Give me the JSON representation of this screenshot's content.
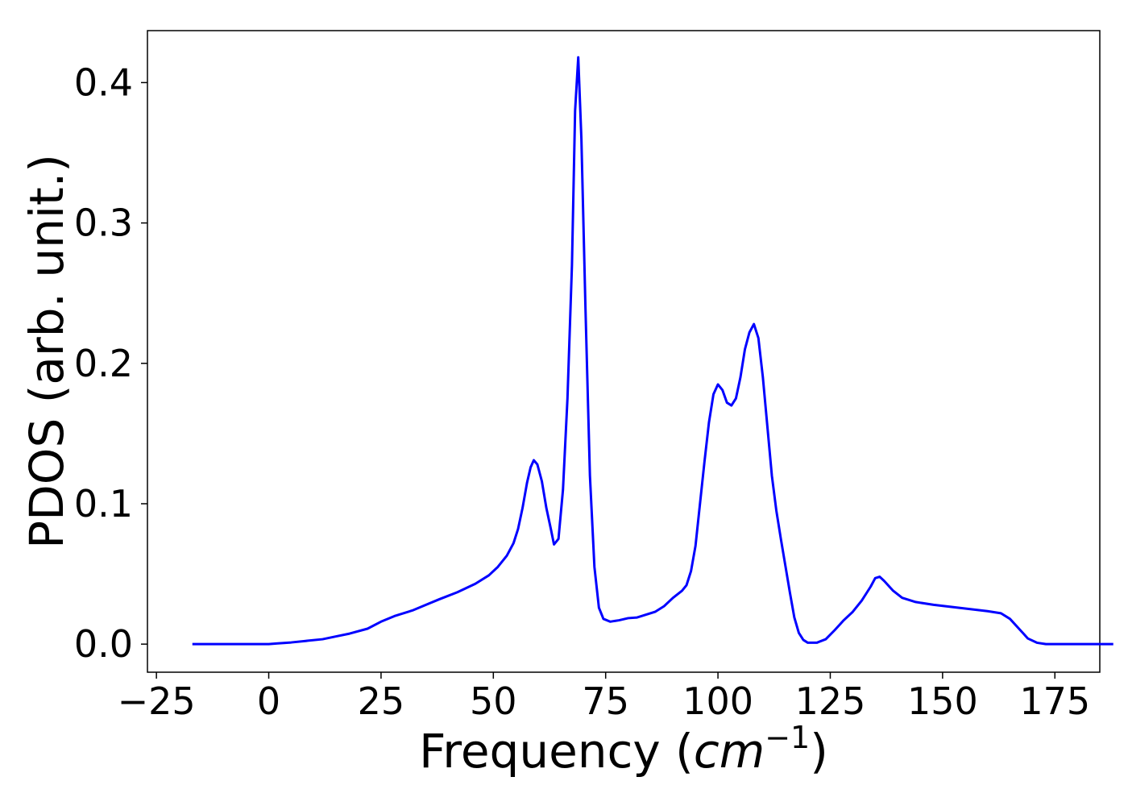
{
  "chart_data": {
    "type": "line",
    "title": "",
    "xlabel_prefix": "Frequency (",
    "xlabel_var": "cm",
    "xlabel_exp": "−1",
    "xlabel_suffix": ")",
    "ylabel": "PDOS (arb. unit.)",
    "xlim": [
      -27,
      185
    ],
    "ylim": [
      -0.02,
      0.437
    ],
    "x_ticks": [
      -25,
      0,
      25,
      50,
      75,
      100,
      125,
      150,
      175
    ],
    "x_tick_labels": [
      "−25",
      "0",
      "25",
      "50",
      "75",
      "100",
      "125",
      "150",
      "175"
    ],
    "y_ticks": [
      0.0,
      0.1,
      0.2,
      0.3,
      0.4
    ],
    "y_tick_labels": [
      "0.0",
      "0.1",
      "0.2",
      "0.3",
      "0.4"
    ],
    "grid": false,
    "series": [
      {
        "color": "#0000ff",
        "points": [
          [
            -17,
            0.0
          ],
          [
            0,
            0.0
          ],
          [
            2,
            0.0005
          ],
          [
            5,
            0.0012
          ],
          [
            8,
            0.0022
          ],
          [
            12,
            0.0035
          ],
          [
            15,
            0.0055
          ],
          [
            18,
            0.0075
          ],
          [
            22,
            0.011
          ],
          [
            25,
            0.016
          ],
          [
            28,
            0.02
          ],
          [
            32,
            0.024
          ],
          [
            35,
            0.028
          ],
          [
            38,
            0.032
          ],
          [
            42,
            0.037
          ],
          [
            46,
            0.043
          ],
          [
            49,
            0.049
          ],
          [
            51,
            0.055
          ],
          [
            53,
            0.063
          ],
          [
            54.5,
            0.072
          ],
          [
            55.5,
            0.082
          ],
          [
            56.5,
            0.097
          ],
          [
            57.5,
            0.115
          ],
          [
            58.3,
            0.126
          ],
          [
            59,
            0.131
          ],
          [
            59.8,
            0.128
          ],
          [
            60.8,
            0.116
          ],
          [
            61.8,
            0.097
          ],
          [
            62.8,
            0.082
          ],
          [
            63.5,
            0.071
          ],
          [
            64.5,
            0.075
          ],
          [
            65.5,
            0.11
          ],
          [
            66.5,
            0.175
          ],
          [
            67.5,
            0.27
          ],
          [
            68.2,
            0.38
          ],
          [
            68.9,
            0.418
          ],
          [
            69.6,
            0.36
          ],
          [
            70.5,
            0.24
          ],
          [
            71.5,
            0.12
          ],
          [
            72.5,
            0.055
          ],
          [
            73.5,
            0.026
          ],
          [
            74.5,
            0.018
          ],
          [
            76,
            0.016
          ],
          [
            78,
            0.017
          ],
          [
            80,
            0.0185
          ],
          [
            82,
            0.019
          ],
          [
            84,
            0.021
          ],
          [
            86,
            0.023
          ],
          [
            88,
            0.027
          ],
          [
            90,
            0.033
          ],
          [
            92,
            0.038
          ],
          [
            93,
            0.042
          ],
          [
            94,
            0.052
          ],
          [
            95,
            0.07
          ],
          [
            96,
            0.1
          ],
          [
            97,
            0.13
          ],
          [
            98,
            0.158
          ],
          [
            99,
            0.178
          ],
          [
            100,
            0.185
          ],
          [
            101,
            0.181
          ],
          [
            102,
            0.172
          ],
          [
            103,
            0.17
          ],
          [
            104,
            0.175
          ],
          [
            105,
            0.19
          ],
          [
            106,
            0.21
          ],
          [
            107,
            0.222
          ],
          [
            108,
            0.228
          ],
          [
            109,
            0.218
          ],
          [
            110,
            0.19
          ],
          [
            111,
            0.155
          ],
          [
            112,
            0.12
          ],
          [
            113,
            0.095
          ],
          [
            114,
            0.075
          ],
          [
            115,
            0.056
          ],
          [
            116,
            0.037
          ],
          [
            117,
            0.019
          ],
          [
            118,
            0.008
          ],
          [
            119,
            0.003
          ],
          [
            120,
            0.001
          ],
          [
            122,
            0.001
          ],
          [
            124,
            0.0035
          ],
          [
            126,
            0.01
          ],
          [
            128,
            0.017
          ],
          [
            130,
            0.023
          ],
          [
            132,
            0.031
          ],
          [
            134,
            0.041
          ],
          [
            135,
            0.047
          ],
          [
            136,
            0.048
          ],
          [
            137,
            0.045
          ],
          [
            139,
            0.038
          ],
          [
            141,
            0.033
          ],
          [
            144,
            0.03
          ],
          [
            148,
            0.028
          ],
          [
            152,
            0.0265
          ],
          [
            156,
            0.025
          ],
          [
            160,
            0.0235
          ],
          [
            163,
            0.022
          ],
          [
            165,
            0.018
          ],
          [
            167,
            0.011
          ],
          [
            169,
            0.004
          ],
          [
            171,
            0.001
          ],
          [
            173,
            0.0
          ],
          [
            188,
            0.0
          ]
        ]
      }
    ]
  }
}
